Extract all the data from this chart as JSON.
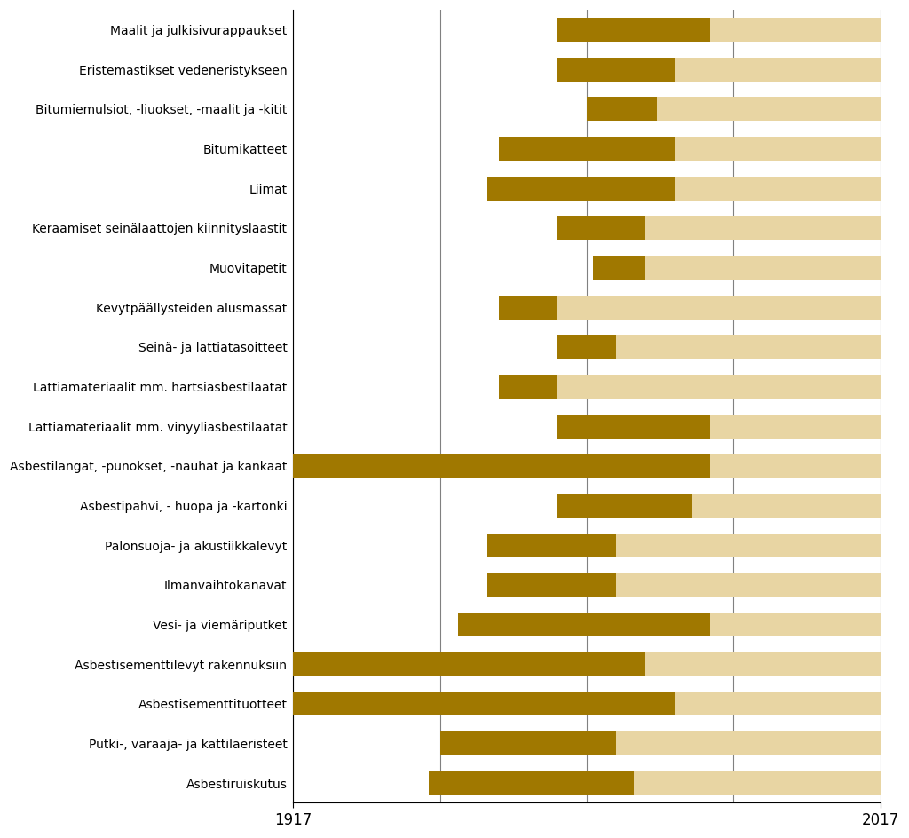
{
  "categories": [
    "Maalit ja julkisivurappaukset",
    "Eristemastikset vedeneristykseen",
    "Bitumiemulsiot, -liuokset, -maalit ja -kitit",
    "Bitumikatteet",
    "Liimat",
    "Keraamiset seinälaattojen kiinnityslaastit",
    "Muovitapetit",
    "Kevytpäällysteiden alusmassat",
    "Seinä- ja lattiatasoitteet",
    "Lattiamateriaalit mm. hartsiasbestilaatat",
    "Lattiamateriaalit mm. vinyyliasbestilaatat",
    "Asbestilangat, -punokset, -nauhat ja kankaat",
    "Asbestipahvi, - huopa ja -kartonki",
    "Palonsuoja- ja akustiikkalevyt",
    "Ilmanvaihtokanavat",
    "Vesi- ja viemäriputket",
    "Asbestisementtilevyt rakennuksiin",
    "Asbestisementtituotteet",
    "Putki-, varaaja- ja kattilaeristeet",
    "Asbestiruiskutus"
  ],
  "dark_start": [
    1962,
    1962,
    1967,
    1952,
    1950,
    1962,
    1968,
    1952,
    1962,
    1952,
    1962,
    1917,
    1962,
    1950,
    1950,
    1945,
    1917,
    1917,
    1942,
    1940
  ],
  "dark_end": [
    1988,
    1982,
    1979,
    1982,
    1982,
    1977,
    1977,
    1962,
    1972,
    1962,
    1988,
    1988,
    1985,
    1972,
    1972,
    1988,
    1977,
    1982,
    1972,
    1975
  ],
  "light_start": [
    1962,
    1962,
    1967,
    1952,
    1950,
    1962,
    1968,
    1952,
    1962,
    1952,
    1962,
    1917,
    1962,
    1950,
    1950,
    1945,
    1917,
    1917,
    1942,
    1940
  ],
  "light_end": [
    2017,
    2017,
    2017,
    2017,
    2017,
    2017,
    2017,
    2017,
    2017,
    2017,
    2017,
    2017,
    2017,
    2017,
    2017,
    2017,
    2017,
    2017,
    2017,
    2017
  ],
  "xmin": 1917,
  "xmax": 2017,
  "dark_color": "#A07800",
  "light_color": "#E8D5A3",
  "background_color": "#FFFFFF",
  "bar_height": 0.6,
  "grid_years": [
    1917,
    1942,
    1967,
    1992,
    2017
  ],
  "grid_color": "#808080",
  "grid_linewidth": 0.8,
  "ytick_fontsize": 10.5,
  "xtick_fontsize": 12
}
